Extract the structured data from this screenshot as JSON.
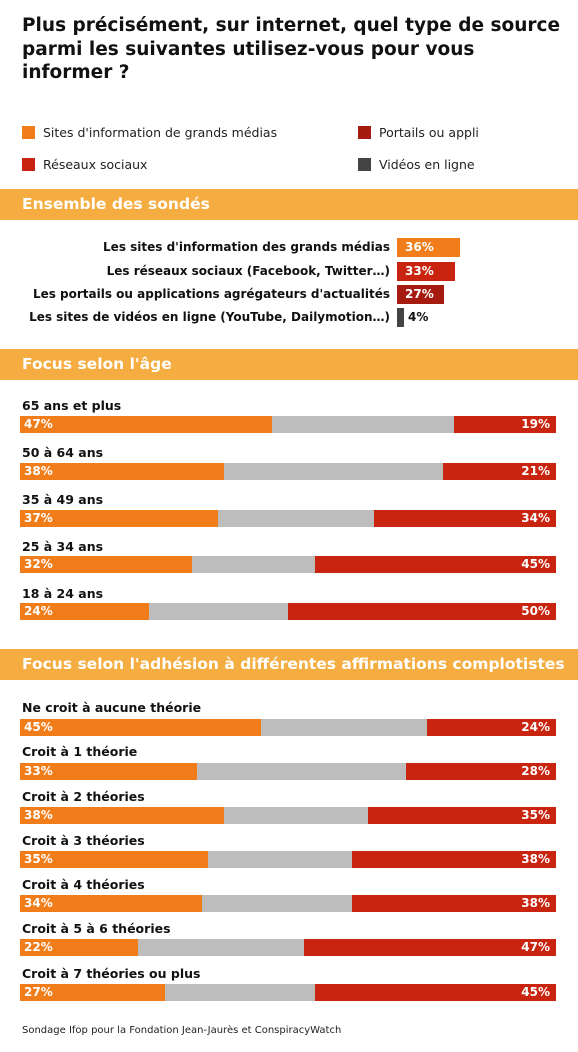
{
  "title": "Plus précisément, sur internet, quel type de source parmi les suivantes utilisez-vous pour vous informer ?",
  "legend": [
    {
      "label": "Sites d'information de grands médias",
      "color": "#f07d1a"
    },
    {
      "label": "Portails ou appli",
      "color": "#a51b10"
    },
    {
      "label": "Réseaux sociaux",
      "color": "#c8240f"
    },
    {
      "label": "Vidéos en ligne",
      "color": "#444444"
    }
  ],
  "colors": {
    "orange": "#f07d1a",
    "red": "#c8240f",
    "darkred": "#a51b10",
    "gray": "#bdbdbd",
    "dark": "#444444",
    "header": "#f5ad42"
  },
  "source": "Sondage Ifop pour la Fondation Jean-Jaurès et ConspiracyWatch",
  "chart_data": [
    {
      "type": "bar",
      "title": "Ensemble des sondés",
      "categories": [
        "Les sites d'information des grands médias",
        "Les réseaux sociaux (Facebook, Twitter…)",
        "Les portails ou applications agrégateurs d'actualités",
        "Les sites de vidéos en ligne (YouTube, Dailymotion…)"
      ],
      "values": [
        36,
        33,
        27,
        4
      ],
      "value_labels": [
        "36%",
        "33%",
        "27%",
        "4%"
      ],
      "colors": [
        "#f07d1a",
        "#c8240f",
        "#a51b10",
        "#444444"
      ],
      "xlim": [
        0,
        100
      ]
    },
    {
      "type": "bar",
      "stacked": true,
      "title": "Focus selon l'âge",
      "categories": [
        "65 ans et plus",
        "50 à 64 ans",
        "35 à 49 ans",
        "25 à 34 ans",
        "18 à 24 ans"
      ],
      "series": [
        {
          "values": [
            47,
            38,
            37,
            32,
            24
          ],
          "labels": [
            "47%",
            "38%",
            "37%",
            "32%",
            "24%"
          ],
          "color": "#f07d1a"
        },
        {
          "values": [
            34,
            41,
            29,
            23,
            26
          ],
          "color": "#bdbdbd"
        },
        {
          "values": [
            19,
            21,
            34,
            45,
            50
          ],
          "labels": [
            "19%",
            "21%",
            "34%",
            "45%",
            "50%"
          ],
          "color": "#c8240f"
        }
      ],
      "xlim": [
        0,
        100
      ]
    },
    {
      "type": "bar",
      "stacked": true,
      "title": "Focus selon l'adhésion à différentes affirmations complotistes",
      "categories": [
        "Ne croit à aucune théorie",
        "Croit à 1 théorie",
        "Croit à 2 théories",
        "Croit à 3 théories",
        "Croit à 4 théories",
        "Croit à 5 à 6 théories",
        "Croit à 7 théories ou plus"
      ],
      "series": [
        {
          "values": [
            45,
            33,
            38,
            35,
            34,
            22,
            27
          ],
          "labels": [
            "45%",
            "33%",
            "38%",
            "35%",
            "34%",
            "22%",
            "27%"
          ],
          "color": "#f07d1a"
        },
        {
          "values": [
            31,
            39,
            27,
            27,
            28,
            31,
            28
          ],
          "color": "#bdbdbd"
        },
        {
          "values": [
            24,
            28,
            35,
            38,
            38,
            47,
            45
          ],
          "labels": [
            "24%",
            "28%",
            "35%",
            "38%",
            "38%",
            "47%",
            "45%"
          ],
          "color": "#c8240f"
        }
      ],
      "xlim": [
        0,
        100
      ]
    }
  ]
}
